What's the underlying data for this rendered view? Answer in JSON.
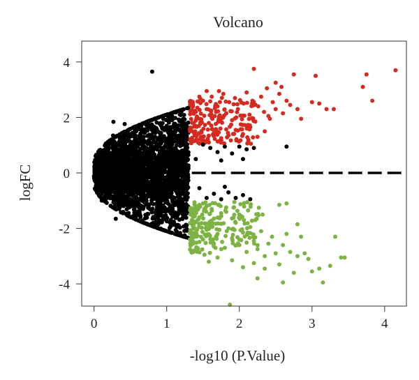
{
  "chart_data": {
    "type": "scatter",
    "title": "Volcano",
    "xlabel": "-log10 (P.Value)",
    "ylabel": "logFC",
    "xlim": [
      -0.17,
      4.3
    ],
    "ylim": [
      -4.8,
      4.75
    ],
    "xticks": [
      "0",
      "1",
      "2",
      "3",
      "4"
    ],
    "yticks": [
      "-4",
      "-2",
      "0",
      "2",
      "4"
    ],
    "grid": false,
    "legend": "none",
    "reference_line": {
      "y": 0,
      "style": "dashed"
    },
    "thresholds": {
      "x": 1.3,
      "logFC": 1
    },
    "colors": {
      "up": "#d42a20",
      "down": "#7cb342",
      "ns": "#000000"
    },
    "series": [
      {
        "group": "up",
        "points": [
          [
            1.36,
            2.45
          ],
          [
            1.4,
            2.2
          ],
          [
            1.45,
            1.95
          ],
          [
            1.5,
            2.6
          ],
          [
            1.55,
            2.3
          ],
          [
            1.58,
            1.8
          ],
          [
            1.62,
            2.75
          ],
          [
            1.66,
            2.05
          ],
          [
            1.7,
            2.4
          ],
          [
            1.74,
            1.6
          ],
          [
            1.78,
            2.85
          ],
          [
            1.82,
            2.15
          ],
          [
            1.86,
            2.55
          ],
          [
            1.9,
            1.9
          ],
          [
            1.94,
            2.7
          ],
          [
            1.98,
            2.3
          ],
          [
            2.02,
            1.75
          ],
          [
            2.06,
            2.5
          ],
          [
            2.1,
            2.9
          ],
          [
            2.14,
            2.1
          ],
          [
            2.18,
            2.6
          ],
          [
            2.22,
            1.85
          ],
          [
            2.26,
            2.4
          ],
          [
            2.3,
            2.75
          ],
          [
            2.34,
            2.2
          ],
          [
            2.38,
            3.05
          ],
          [
            2.42,
            1.95
          ],
          [
            2.46,
            2.55
          ],
          [
            2.5,
            2.3
          ],
          [
            2.55,
            2.85
          ],
          [
            2.6,
            2.15
          ],
          [
            2.65,
            2.6
          ],
          [
            2.58,
            3.1
          ],
          [
            1.45,
            2.75
          ],
          [
            1.55,
            2.95
          ],
          [
            1.65,
            1.45
          ],
          [
            1.75,
            1.25
          ],
          [
            1.85,
            1.35
          ],
          [
            1.95,
            1.55
          ],
          [
            2.05,
            1.4
          ],
          [
            2.15,
            1.65
          ],
          [
            2.25,
            1.3
          ],
          [
            2.35,
            1.5
          ],
          [
            1.38,
            1.15
          ],
          [
            1.48,
            1.3
          ],
          [
            1.58,
            1.1
          ],
          [
            1.68,
            2.2
          ],
          [
            1.72,
            2.95
          ],
          [
            2.2,
            3.75
          ],
          [
            2.8,
            2.3
          ],
          [
            2.85,
            1.95
          ],
          [
            3.0,
            2.55
          ],
          [
            3.1,
            2.5
          ],
          [
            3.05,
            3.5
          ],
          [
            3.2,
            2.3
          ],
          [
            3.3,
            2.3
          ],
          [
            3.75,
            3.55
          ],
          [
            3.83,
            2.6
          ],
          [
            4.15,
            3.7
          ],
          [
            3.7,
            3.1
          ],
          [
            2.75,
            3.55
          ],
          [
            2.5,
            3.25
          ],
          [
            2.7,
            2.45
          ],
          [
            2.4,
            2.05
          ]
        ]
      },
      {
        "group": "down",
        "points": [
          [
            1.36,
            -1.9
          ],
          [
            1.4,
            -2.15
          ],
          [
            1.45,
            -1.6
          ],
          [
            1.5,
            -2.4
          ],
          [
            1.55,
            -2.05
          ],
          [
            1.6,
            -1.75
          ],
          [
            1.65,
            -2.55
          ],
          [
            1.7,
            -2.2
          ],
          [
            1.75,
            -1.45
          ],
          [
            1.8,
            -2.7
          ],
          [
            1.85,
            -2.0
          ],
          [
            1.9,
            -2.35
          ],
          [
            1.95,
            -1.8
          ],
          [
            2.0,
            -2.6
          ],
          [
            2.05,
            -2.15
          ],
          [
            2.1,
            -2.85
          ],
          [
            2.15,
            -1.95
          ],
          [
            2.2,
            -2.45
          ],
          [
            2.25,
            -2.75
          ],
          [
            2.3,
            -2.1
          ],
          [
            2.35,
            -3.0
          ],
          [
            2.4,
            -2.55
          ],
          [
            2.45,
            -2.3
          ],
          [
            2.5,
            -2.9
          ],
          [
            2.55,
            -3.3
          ],
          [
            2.6,
            -2.6
          ],
          [
            2.65,
            -2.2
          ],
          [
            2.7,
            -2.85
          ],
          [
            2.75,
            -3.6
          ],
          [
            2.8,
            -3.0
          ],
          [
            1.42,
            -2.7
          ],
          [
            1.52,
            -2.95
          ],
          [
            1.62,
            -1.3
          ],
          [
            1.72,
            -1.15
          ],
          [
            1.82,
            -1.4
          ],
          [
            1.92,
            -1.25
          ],
          [
            2.02,
            -1.55
          ],
          [
            2.12,
            -1.35
          ],
          [
            2.22,
            -1.7
          ],
          [
            2.32,
            -1.5
          ],
          [
            1.4,
            -1.2
          ],
          [
            1.5,
            -1.1
          ],
          [
            1.58,
            -3.2
          ],
          [
            1.7,
            -3.05
          ],
          [
            1.9,
            -3.15
          ],
          [
            2.05,
            -3.4
          ],
          [
            2.2,
            -3.25
          ],
          [
            2.35,
            -3.45
          ],
          [
            2.6,
            -3.95
          ],
          [
            2.65,
            -1.1
          ],
          [
            2.55,
            -1.15
          ],
          [
            2.9,
            -2.9
          ],
          [
            2.85,
            -2.3
          ],
          [
            2.8,
            -1.85
          ],
          [
            2.95,
            -3.1
          ],
          [
            3.0,
            -3.55
          ],
          [
            3.1,
            -3.45
          ],
          [
            3.15,
            -3.95
          ],
          [
            3.25,
            -3.35
          ],
          [
            3.4,
            -3.05
          ],
          [
            3.45,
            -3.05
          ],
          [
            3.32,
            -2.3
          ],
          [
            1.87,
            -4.75
          ],
          [
            2.25,
            -3.8
          ]
        ]
      },
      {
        "group": "ns_outliers",
        "points": [
          [
            0.8,
            3.65
          ],
          [
            2.65,
            0.95
          ],
          [
            1.5,
            1.02
          ],
          [
            1.6,
            0.9
          ],
          [
            1.7,
            0.75
          ],
          [
            1.8,
            0.95
          ],
          [
            1.9,
            0.7
          ],
          [
            2.0,
            0.95
          ],
          [
            2.1,
            0.85
          ],
          [
            2.2,
            0.9
          ],
          [
            2.05,
            0.5
          ],
          [
            1.75,
            0.45
          ],
          [
            1.55,
            -0.9
          ],
          [
            1.65,
            -0.75
          ],
          [
            1.75,
            -0.95
          ],
          [
            1.85,
            -0.7
          ],
          [
            1.95,
            -0.9
          ],
          [
            2.05,
            -0.8
          ],
          [
            2.15,
            -0.95
          ],
          [
            1.8,
            -0.5
          ],
          [
            1.45,
            -0.55
          ],
          [
            1.4,
            0.5
          ]
        ]
      }
    ]
  }
}
